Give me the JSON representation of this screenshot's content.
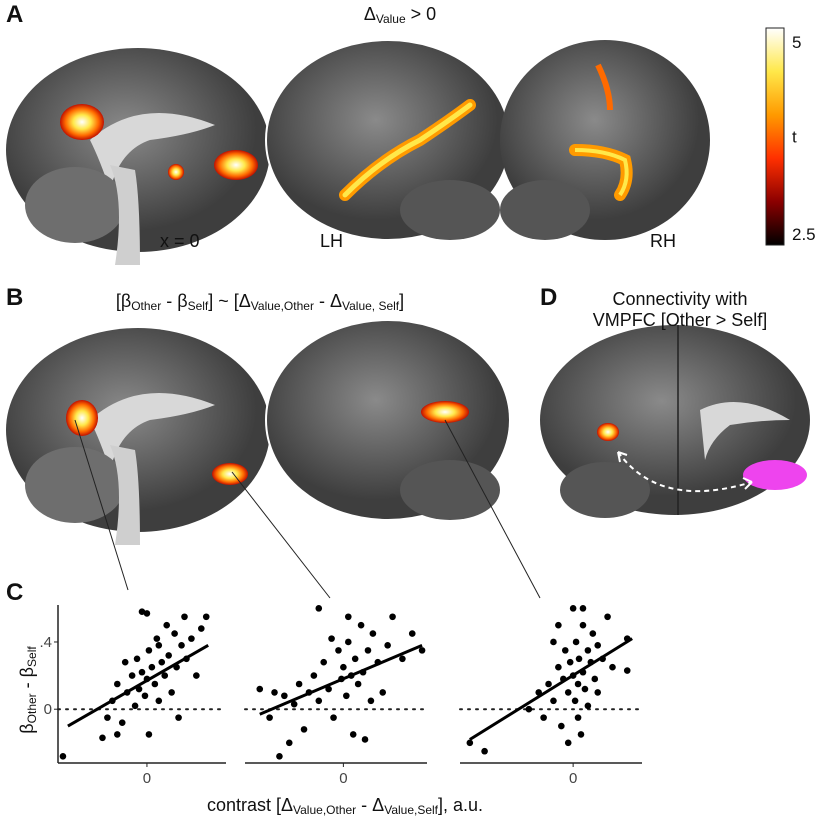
{
  "panel_labels": [
    "A",
    "B",
    "C",
    "D"
  ],
  "panel_a": {
    "title": [
      {
        "text": "Δ"
      },
      {
        "text": "Value",
        "sub": true
      },
      {
        "text": " > 0"
      }
    ],
    "slice_label": "x = 0",
    "lh": "LH",
    "rh": "RH",
    "colorbar": {
      "label": "t",
      "range": [
        2.36,
        5.18
      ],
      "ticks": [
        5,
        2.5
      ],
      "colors": [
        "#000000",
        "#8b0000",
        "#ff3000",
        "#ff9a00",
        "#ffe84a",
        "#ffffff"
      ]
    }
  },
  "panel_b": {
    "title": [
      {
        "text": "[β"
      },
      {
        "text": "Other",
        "sub": true
      },
      {
        "text": " - β"
      },
      {
        "text": "Self",
        "sub": true
      },
      {
        "text": "] ~ [Δ"
      },
      {
        "text": "Value,Other",
        "sub": true
      },
      {
        "text": " - Δ"
      },
      {
        "text": "Value, Self",
        "sub": true
      },
      {
        "text": "]"
      }
    ]
  },
  "panel_d": {
    "title_lines": [
      "Connectivity with",
      "VMPFC [Other > Self]"
    ]
  },
  "panel_c": {
    "y_label": [
      {
        "text": "β"
      },
      {
        "text": "Other",
        "sub": true
      },
      {
        "text": " - β"
      },
      {
        "text": "Self",
        "sub": true
      }
    ],
    "x_label": [
      {
        "text": "contrast [Δ"
      },
      {
        "text": "Value,Other",
        "sub": true
      },
      {
        "text": " - Δ"
      },
      {
        "text": "Value,Self",
        "sub": true
      },
      {
        "text": "], a.u."
      }
    ]
  },
  "chart_data": [
    {
      "type": "scatter",
      "color": "#000000",
      "xlim": [
        -0.9,
        0.8
      ],
      "ylim": [
        -0.32,
        0.62
      ],
      "xticks": [
        0
      ],
      "yticks": [
        {
          "value": 0.4,
          "label": ".4"
        },
        0
      ],
      "hline": 0,
      "x": [
        -0.85,
        -0.45,
        -0.4,
        -0.35,
        -0.3,
        -0.25,
        -0.2,
        -0.15,
        -0.12,
        -0.1,
        -0.08,
        -0.05,
        -0.02,
        0,
        0.02,
        0.05,
        0.08,
        0.1,
        0.12,
        0.15,
        0.18,
        0.2,
        0.22,
        0.25,
        0.28,
        0.3,
        0.32,
        0.35,
        0.38,
        0.4,
        0.45,
        0.5,
        0.55,
        0.6,
        0.02,
        -0.05,
        0,
        -0.22,
        0.12,
        -0.3
      ],
      "y": [
        -0.28,
        -0.17,
        -0.05,
        0.05,
        0.15,
        -0.08,
        0.1,
        0.2,
        0.02,
        0.3,
        0.12,
        0.22,
        0.08,
        0.18,
        0.35,
        0.25,
        0.15,
        0.42,
        0.05,
        0.28,
        0.2,
        0.5,
        0.32,
        0.1,
        0.45,
        0.25,
        -0.05,
        0.38,
        0.55,
        0.3,
        0.42,
        0.2,
        0.48,
        0.55,
        -0.15,
        0.58,
        0.57,
        0.28,
        0.38,
        -0.15
      ],
      "fit": {
        "x": [
          -0.8,
          0.62
        ],
        "y": [
          -0.1,
          0.38
        ]
      }
    },
    {
      "type": "scatter",
      "color": "#000000",
      "xlim": [
        -1.0,
        0.85
      ],
      "ylim": [
        -0.32,
        0.62
      ],
      "xticks": [
        0
      ],
      "yticks": [],
      "hline": 0,
      "x": [
        -0.85,
        -0.7,
        -0.75,
        -0.6,
        -0.55,
        -0.5,
        -0.45,
        -0.4,
        -0.35,
        -0.3,
        -0.25,
        -0.2,
        -0.15,
        -0.1,
        -0.05,
        -0.02,
        0,
        0.03,
        0.05,
        0.08,
        0.1,
        0.12,
        0.15,
        0.18,
        0.2,
        0.25,
        0.28,
        0.3,
        0.35,
        0.4,
        0.45,
        0.5,
        0.6,
        0.7,
        0.8,
        -0.25,
        -0.65,
        0.22,
        -0.12,
        0.05
      ],
      "y": [
        0.12,
        0.1,
        -0.05,
        0.08,
        -0.2,
        0.03,
        0.15,
        -0.12,
        0.1,
        0.2,
        0.05,
        0.28,
        0.12,
        -0.05,
        0.35,
        0.18,
        0.25,
        0.08,
        0.4,
        0.2,
        -0.15,
        0.3,
        0.15,
        0.5,
        0.22,
        0.35,
        0.05,
        0.45,
        0.28,
        0.1,
        0.38,
        0.55,
        0.3,
        0.45,
        0.35,
        0.6,
        -0.28,
        -0.18,
        0.42,
        0.55
      ],
      "fit": {
        "x": [
          -0.85,
          0.8
        ],
        "y": [
          -0.03,
          0.38
        ]
      }
    },
    {
      "type": "scatter",
      "color": "#000000",
      "xlim": [
        -1.15,
        0.7
      ],
      "ylim": [
        -0.32,
        0.62
      ],
      "xticks": [
        0
      ],
      "yticks": [],
      "hline": 0,
      "x": [
        -1.05,
        -0.9,
        -0.45,
        -0.35,
        -0.3,
        -0.25,
        -0.2,
        -0.15,
        -0.12,
        -0.1,
        -0.08,
        -0.05,
        -0.03,
        0,
        0,
        0.02,
        0.03,
        0.05,
        0.06,
        0.08,
        0.1,
        0.1,
        0.12,
        0.15,
        0.15,
        0.18,
        0.2,
        0.22,
        0.25,
        0.3,
        0.35,
        0.4,
        0.55,
        0.55,
        -0.15,
        -0.05,
        0.1,
        -0.2,
        0.05,
        0.25
      ],
      "y": [
        -0.2,
        -0.25,
        0,
        0.1,
        -0.05,
        0.15,
        0.05,
        0.25,
        -0.1,
        0.18,
        0.35,
        0.1,
        0.28,
        0.2,
        0.6,
        0.05,
        0.4,
        0.15,
        0.3,
        -0.15,
        0.22,
        0.5,
        0.12,
        0.35,
        0.02,
        0.28,
        0.45,
        0.18,
        0.38,
        0.3,
        0.55,
        0.25,
        0.42,
        0.23,
        0.5,
        -0.2,
        0.6,
        0.4,
        -0.05,
        0.1
      ],
      "fit": {
        "x": [
          -1.05,
          0.6
        ],
        "y": [
          -0.18,
          0.42
        ]
      }
    }
  ]
}
